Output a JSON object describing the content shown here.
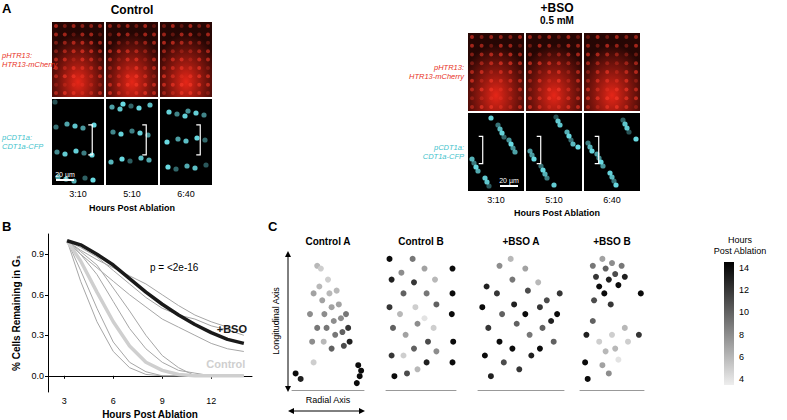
{
  "panel_labels": [
    "A",
    "B",
    "C"
  ],
  "panel_A": {
    "rows": [
      {
        "label": [
          "pHTR13:",
          "HTR13-mCherry"
        ],
        "color": "#e8321e"
      },
      {
        "label": [
          "pCDT1a:",
          "CDT1a-CFP"
        ],
        "color": "#3fc3cc"
      }
    ],
    "groups": [
      {
        "title": "Control",
        "times": [
          "3:10",
          "5:10",
          "6:40"
        ],
        "x_label": "Hours Post Ablation",
        "scale_bar": "20 µm"
      },
      {
        "title": "+BSO",
        "subtitle": "0.5 mM",
        "times": [
          "3:10",
          "5:10",
          "6:40"
        ],
        "x_label": "Hours Post Ablation",
        "scale_bar": "20 µm"
      }
    ]
  },
  "chart_data": [
    {
      "type": "line",
      "x_label": "Hours Post Ablation",
      "y_label": "% Cells Remaining in G₁",
      "xlim": [
        2,
        14.5
      ],
      "xticks": [
        3,
        6,
        9,
        12
      ],
      "ylim": [
        -0.12,
        1.05
      ],
      "yticks": [
        {
          "value": 0,
          "label": "0.0"
        },
        0.3,
        0.6,
        0.9
      ],
      "annotations": [
        "p = <2e-16"
      ],
      "x": [
        3.17,
        4,
        5,
        6,
        7,
        8,
        9,
        10,
        11,
        12,
        13,
        14
      ],
      "series": [
        {
          "color": "#a6a6a6",
          "line_style": "thin",
          "values": [
            1.0,
            0.93,
            0.86,
            0.8,
            0.74,
            0.68,
            0.6,
            0.52,
            0.45,
            0.4,
            0.36,
            0.33
          ]
        },
        {
          "color": "#a6a6a6",
          "line_style": "thin",
          "values": [
            1.0,
            0.95,
            0.88,
            0.78,
            0.68,
            0.58,
            0.5,
            0.45,
            0.42,
            0.37,
            0.34,
            0.3
          ]
        },
        {
          "color": "#a6a6a6",
          "line_style": "thin",
          "values": [
            1.0,
            0.9,
            0.8,
            0.7,
            0.6,
            0.51,
            0.42,
            0.36,
            0.3,
            0.24,
            0.2,
            0.18
          ]
        },
        {
          "color": "#a6a6a6",
          "line_style": "thin",
          "values": [
            1.0,
            0.7,
            0.4,
            0.18,
            0.06,
            0.01,
            0,
            0,
            0,
            0,
            0,
            0
          ]
        },
        {
          "color": "#a6a6a6",
          "line_style": "thin",
          "values": [
            1.0,
            0.9,
            0.75,
            0.55,
            0.35,
            0.2,
            0.1,
            0.04,
            0.02,
            0,
            0,
            0
          ]
        },
        {
          "color": "#a6a6a6",
          "line_style": "thin",
          "values": [
            1.0,
            0.78,
            0.5,
            0.25,
            0.1,
            0.03,
            0,
            0,
            0,
            0,
            0,
            0
          ]
        },
        {
          "color": "#a6a6a6",
          "line_style": "thin",
          "values": [
            1.0,
            0.92,
            0.82,
            0.65,
            0.48,
            0.3,
            0.15,
            0.06,
            0,
            0,
            0,
            0
          ]
        },
        {
          "name": "Control",
          "color": "#cfcfcf",
          "line_style": "bold",
          "values": [
            1.0,
            0.85,
            0.62,
            0.4,
            0.22,
            0.1,
            0.04,
            0.01,
            0,
            0,
            0,
            0
          ]
        },
        {
          "name": "+BSO",
          "color": "#1a1a1a",
          "line_style": "bold",
          "values": [
            1.0,
            0.97,
            0.9,
            0.82,
            0.72,
            0.62,
            0.53,
            0.45,
            0.38,
            0.32,
            0.27,
            0.24
          ]
        }
      ]
    },
    {
      "type": "scatter",
      "title": "Control A",
      "x_label": "Radial Axis",
      "y_label": "Longitudinal Axis",
      "xlim": [
        0,
        100
      ],
      "ylim": [
        0,
        100
      ],
      "tick_labels": false,
      "points": [
        [
          5,
          12,
          14
        ],
        [
          12,
          8,
          13
        ],
        [
          30,
          20,
          5
        ],
        [
          25,
          55,
          8
        ],
        [
          30,
          70,
          7
        ],
        [
          35,
          90,
          6
        ],
        [
          40,
          88,
          5
        ],
        [
          38,
          75,
          6
        ],
        [
          42,
          65,
          7
        ],
        [
          45,
          55,
          8
        ],
        [
          48,
          45,
          9
        ],
        [
          44,
          35,
          6
        ],
        [
          50,
          80,
          5
        ],
        [
          52,
          70,
          6
        ],
        [
          55,
          60,
          7
        ],
        [
          58,
          50,
          8
        ],
        [
          60,
          40,
          9
        ],
        [
          55,
          30,
          10
        ],
        [
          62,
          72,
          6
        ],
        [
          65,
          62,
          7
        ],
        [
          68,
          52,
          8
        ],
        [
          70,
          42,
          10
        ],
        [
          72,
          32,
          11
        ],
        [
          75,
          55,
          9
        ],
        [
          78,
          45,
          12
        ],
        [
          80,
          35,
          13
        ],
        [
          92,
          18,
          14
        ],
        [
          94,
          10,
          14
        ],
        [
          90,
          5,
          14
        ],
        [
          96,
          14,
          14
        ],
        [
          35,
          45,
          9
        ],
        [
          28,
          35,
          8
        ]
      ]
    },
    {
      "type": "scatter",
      "title": "Control B",
      "xlim": [
        0,
        100
      ],
      "ylim": [
        0,
        100
      ],
      "tick_labels": false,
      "points": [
        [
          5,
          95,
          14
        ],
        [
          8,
          80,
          13
        ],
        [
          5,
          60,
          12
        ],
        [
          10,
          45,
          10
        ],
        [
          8,
          25,
          12
        ],
        [
          12,
          10,
          14
        ],
        [
          22,
          85,
          8
        ],
        [
          25,
          70,
          10
        ],
        [
          20,
          55,
          6
        ],
        [
          28,
          40,
          7
        ],
        [
          25,
          25,
          5
        ],
        [
          30,
          12,
          11
        ],
        [
          38,
          95,
          9
        ],
        [
          40,
          78,
          12
        ],
        [
          42,
          60,
          5
        ],
        [
          45,
          48,
          8
        ],
        [
          40,
          30,
          10
        ],
        [
          45,
          15,
          6
        ],
        [
          55,
          88,
          7
        ],
        [
          58,
          70,
          9
        ],
        [
          55,
          52,
          4
        ],
        [
          60,
          35,
          11
        ],
        [
          58,
          20,
          13
        ],
        [
          70,
          80,
          6
        ],
        [
          72,
          62,
          10
        ],
        [
          68,
          45,
          5
        ],
        [
          72,
          28,
          8
        ],
        [
          95,
          88,
          14
        ],
        [
          95,
          70,
          14
        ],
        [
          94,
          55,
          14
        ],
        [
          96,
          35,
          14
        ],
        [
          95,
          20,
          14
        ]
      ]
    },
    {
      "type": "scatter",
      "title": "+BSO A",
      "xlim": [
        0,
        100
      ],
      "ylim": [
        0,
        100
      ],
      "tick_labels": false,
      "points": [
        [
          5,
          60,
          14
        ],
        [
          10,
          75,
          13
        ],
        [
          12,
          45,
          12
        ],
        [
          8,
          25,
          14
        ],
        [
          15,
          10,
          13
        ],
        [
          25,
          90,
          8
        ],
        [
          22,
          70,
          12
        ],
        [
          28,
          55,
          10
        ],
        [
          25,
          35,
          14
        ],
        [
          30,
          20,
          11
        ],
        [
          38,
          95,
          6
        ],
        [
          40,
          80,
          9
        ],
        [
          42,
          62,
          13
        ],
        [
          45,
          48,
          10
        ],
        [
          40,
          30,
          14
        ],
        [
          48,
          15,
          12
        ],
        [
          55,
          88,
          7
        ],
        [
          58,
          72,
          11
        ],
        [
          55,
          55,
          14
        ],
        [
          60,
          40,
          9
        ],
        [
          62,
          25,
          13
        ],
        [
          70,
          78,
          6
        ],
        [
          72,
          60,
          12
        ],
        [
          75,
          45,
          10
        ],
        [
          72,
          30,
          14
        ],
        [
          80,
          65,
          11
        ],
        [
          85,
          50,
          13
        ],
        [
          88,
          35,
          10
        ],
        [
          95,
          70,
          12
        ],
        [
          92,
          55,
          14
        ]
      ]
    },
    {
      "type": "scatter",
      "title": "+BSO B",
      "xlim": [
        0,
        100
      ],
      "ylim": [
        0,
        100
      ],
      "tick_labels": false,
      "points": [
        [
          8,
          20,
          14
        ],
        [
          12,
          8,
          14
        ],
        [
          10,
          40,
          13
        ],
        [
          20,
          90,
          9
        ],
        [
          25,
          82,
          12
        ],
        [
          30,
          75,
          14
        ],
        [
          22,
          65,
          11
        ],
        [
          35,
          95,
          7
        ],
        [
          40,
          88,
          10
        ],
        [
          45,
          80,
          13
        ],
        [
          38,
          70,
          14
        ],
        [
          50,
          92,
          8
        ],
        [
          55,
          84,
          11
        ],
        [
          60,
          76,
          14
        ],
        [
          48,
          62,
          12
        ],
        [
          65,
          90,
          9
        ],
        [
          70,
          82,
          13
        ],
        [
          30,
          35,
          5
        ],
        [
          40,
          28,
          6
        ],
        [
          35,
          18,
          7
        ],
        [
          50,
          40,
          5
        ],
        [
          55,
          30,
          6
        ],
        [
          60,
          22,
          4
        ],
        [
          45,
          12,
          8
        ],
        [
          70,
          45,
          6
        ],
        [
          75,
          35,
          5
        ],
        [
          95,
          70,
          14
        ],
        [
          92,
          40,
          12
        ],
        [
          20,
          50,
          10
        ]
      ]
    }
  ],
  "colorbar": {
    "label": "Hours Post Ablation",
    "lim": [
      3.5,
      14.5
    ],
    "ticks": [
      4,
      6,
      8,
      10,
      12,
      14
    ]
  }
}
